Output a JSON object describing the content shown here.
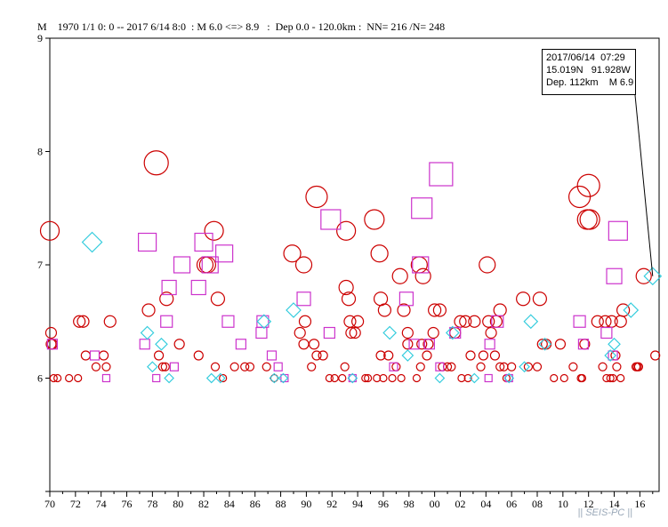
{
  "header": {
    "axis_letter": "M",
    "summary": "1970 1/1 0: 0 -- 2017 6/14 8:0  : M 6.0 <=> 8.9   :  Dep 0.0 - 120.0km :  NN= 216 /N= 248"
  },
  "info_box": {
    "line1": "2017/06/14  07:29",
    "line2": "15.019N   91.928W",
    "line3": "Dep. 112km    M 6.9"
  },
  "watermark": "|| SEIS-PC ||",
  "colors": {
    "circle": "#cc0000",
    "square": "#cc33cc",
    "diamond": "#33ccdd",
    "axis": "#000000"
  },
  "chart_data": {
    "type": "scatter",
    "title": "",
    "xlabel": "",
    "ylabel": "M",
    "xlim": [
      1970,
      2017.5
    ],
    "ylim": [
      5,
      9
    ],
    "x_tick_labels": [
      "70",
      "72",
      "74",
      "76",
      "78",
      "80",
      "82",
      "84",
      "86",
      "88",
      "90",
      "92",
      "94",
      "96",
      "98",
      "00",
      "02",
      "04",
      "06",
      "08",
      "10",
      "12",
      "14",
      "16"
    ],
    "y_tick_labels": [
      "6",
      "7",
      "8",
      "9"
    ],
    "series": [
      {
        "marker": "circle",
        "points": [
          [
            1970.0,
            7.3
          ],
          [
            1970.1,
            6.4
          ],
          [
            1970.1,
            6.3
          ],
          [
            1970.2,
            6.3
          ],
          [
            1970.3,
            6.0
          ],
          [
            1970.6,
            6.0
          ],
          [
            1971.5,
            6.0
          ],
          [
            1972.2,
            6.0
          ],
          [
            1972.3,
            6.5
          ],
          [
            1972.6,
            6.5
          ],
          [
            1972.8,
            6.2
          ],
          [
            1973.6,
            6.1
          ],
          [
            1974.2,
            6.2
          ],
          [
            1974.4,
            6.1
          ],
          [
            1974.7,
            6.5
          ],
          [
            1977.7,
            6.6
          ],
          [
            1978.3,
            7.9
          ],
          [
            1978.5,
            6.2
          ],
          [
            1978.8,
            6.1
          ],
          [
            1979.0,
            6.1
          ],
          [
            1979.1,
            6.7
          ],
          [
            1980.1,
            6.3
          ],
          [
            1981.6,
            6.2
          ],
          [
            1982.1,
            7.0
          ],
          [
            1982.3,
            7.0
          ],
          [
            1982.8,
            7.3
          ],
          [
            1982.9,
            6.1
          ],
          [
            1983.1,
            6.7
          ],
          [
            1983.5,
            6.0
          ],
          [
            1984.4,
            6.1
          ],
          [
            1985.2,
            6.1
          ],
          [
            1985.6,
            6.1
          ],
          [
            1986.9,
            6.1
          ],
          [
            1987.5,
            6.0
          ],
          [
            1988.9,
            7.1
          ],
          [
            1989.5,
            6.4
          ],
          [
            1989.8,
            7.0
          ],
          [
            1989.8,
            6.3
          ],
          [
            1989.9,
            6.5
          ],
          [
            1990.4,
            6.1
          ],
          [
            1990.6,
            6.3
          ],
          [
            1990.8,
            7.6
          ],
          [
            1990.8,
            6.2
          ],
          [
            1991.3,
            6.2
          ],
          [
            1991.8,
            6.0
          ],
          [
            1992.2,
            6.0
          ],
          [
            1992.8,
            6.0
          ],
          [
            1993.0,
            6.1
          ],
          [
            1993.1,
            6.8
          ],
          [
            1993.1,
            7.3
          ],
          [
            1993.3,
            6.7
          ],
          [
            1993.4,
            6.5
          ],
          [
            1993.5,
            6.4
          ],
          [
            1993.8,
            6.4
          ],
          [
            1994.0,
            6.5
          ],
          [
            1994.6,
            6.0
          ],
          [
            1994.8,
            6.0
          ],
          [
            1995.3,
            7.4
          ],
          [
            1995.5,
            6.0
          ],
          [
            1995.7,
            7.1
          ],
          [
            1995.8,
            6.2
          ],
          [
            1995.8,
            6.7
          ],
          [
            1996.0,
            6.0
          ],
          [
            1996.1,
            6.6
          ],
          [
            1996.4,
            6.2
          ],
          [
            1996.7,
            6.0
          ],
          [
            1997.0,
            6.1
          ],
          [
            1997.3,
            6.9
          ],
          [
            1997.4,
            6.0
          ],
          [
            1997.6,
            6.6
          ],
          [
            1997.9,
            6.3
          ],
          [
            1997.9,
            6.4
          ],
          [
            1998.6,
            6.0
          ],
          [
            1998.8,
            7.0
          ],
          [
            1998.9,
            6.1
          ],
          [
            1999.0,
            6.3
          ],
          [
            1999.1,
            6.9
          ],
          [
            1999.4,
            6.2
          ],
          [
            1999.5,
            6.3
          ],
          [
            1999.9,
            6.4
          ],
          [
            2000.0,
            6.6
          ],
          [
            2000.4,
            6.6
          ],
          [
            2000.6,
            6.1
          ],
          [
            2001.0,
            6.1
          ],
          [
            2001.3,
            6.1
          ],
          [
            2001.6,
            6.4
          ],
          [
            2002.0,
            6.5
          ],
          [
            2002.1,
            6.0
          ],
          [
            2002.4,
            6.5
          ],
          [
            2002.6,
            6.0
          ],
          [
            2002.8,
            6.2
          ],
          [
            2003.1,
            6.5
          ],
          [
            2003.6,
            6.1
          ],
          [
            2003.8,
            6.2
          ],
          [
            2004.1,
            7.0
          ],
          [
            2004.2,
            6.5
          ],
          [
            2004.4,
            6.4
          ],
          [
            2004.7,
            6.2
          ],
          [
            2004.8,
            6.5
          ],
          [
            2005.1,
            6.6
          ],
          [
            2005.1,
            6.1
          ],
          [
            2005.4,
            6.1
          ],
          [
            2005.6,
            6.0
          ],
          [
            2006.0,
            6.1
          ],
          [
            2006.9,
            6.7
          ],
          [
            2007.3,
            6.1
          ],
          [
            2008.0,
            6.1
          ],
          [
            2008.2,
            6.7
          ],
          [
            2008.4,
            6.3
          ],
          [
            2008.7,
            6.3
          ],
          [
            2009.3,
            6.0
          ],
          [
            2009.8,
            6.3
          ],
          [
            2010.1,
            6.0
          ],
          [
            2010.8,
            6.1
          ],
          [
            2011.3,
            7.6
          ],
          [
            2011.4,
            6.0
          ],
          [
            2011.5,
            6.0
          ],
          [
            2011.7,
            6.3
          ],
          [
            2011.9,
            7.4
          ],
          [
            2012.0,
            7.7
          ],
          [
            2012.1,
            7.4
          ],
          [
            2012.7,
            6.5
          ],
          [
            2013.1,
            6.1
          ],
          [
            2013.3,
            6.5
          ],
          [
            2013.4,
            6.0
          ],
          [
            2013.7,
            6.0
          ],
          [
            2013.8,
            6.5
          ],
          [
            2013.9,
            6.0
          ],
          [
            2014.1,
            6.2
          ],
          [
            2014.2,
            6.1
          ],
          [
            2014.5,
            6.0
          ],
          [
            2014.5,
            6.5
          ],
          [
            2014.7,
            6.6
          ],
          [
            2015.7,
            6.1
          ],
          [
            2015.8,
            6.1
          ],
          [
            2015.9,
            6.1
          ],
          [
            2016.3,
            6.9
          ],
          [
            2017.2,
            6.2
          ]
        ]
      },
      {
        "marker": "square",
        "points": [
          [
            1970.2,
            6.3
          ],
          [
            1973.5,
            6.2
          ],
          [
            1974.4,
            6.0
          ],
          [
            1977.4,
            6.3
          ],
          [
            1977.6,
            7.2
          ],
          [
            1978.3,
            6.0
          ],
          [
            1979.1,
            6.5
          ],
          [
            1979.3,
            6.8
          ],
          [
            1979.7,
            6.1
          ],
          [
            1980.3,
            7.0
          ],
          [
            1981.6,
            6.8
          ],
          [
            1982.0,
            7.2
          ],
          [
            1982.5,
            7.0
          ],
          [
            1983.6,
            7.1
          ],
          [
            1983.9,
            6.5
          ],
          [
            1984.9,
            6.3
          ],
          [
            1986.5,
            6.4
          ],
          [
            1986.6,
            6.5
          ],
          [
            1987.3,
            6.2
          ],
          [
            1987.8,
            6.1
          ],
          [
            1988.3,
            6.0
          ],
          [
            1989.8,
            6.7
          ],
          [
            1991.8,
            6.4
          ],
          [
            1991.9,
            7.4
          ],
          [
            1993.6,
            6.0
          ],
          [
            1996.8,
            6.1
          ],
          [
            1997.8,
            6.7
          ],
          [
            1998.4,
            6.3
          ],
          [
            1999.0,
            7.5
          ],
          [
            1998.9,
            7.0
          ],
          [
            1999.6,
            6.3
          ],
          [
            2000.4,
            6.1
          ],
          [
            2000.5,
            7.8
          ],
          [
            2001.6,
            6.4
          ],
          [
            2004.2,
            6.0
          ],
          [
            2004.3,
            6.3
          ],
          [
            2004.9,
            6.5
          ],
          [
            2005.8,
            6.0
          ],
          [
            2011.3,
            6.5
          ],
          [
            2011.6,
            6.3
          ],
          [
            2013.4,
            6.4
          ],
          [
            2013.9,
            6.2
          ],
          [
            2014.0,
            6.9
          ],
          [
            2014.3,
            7.3
          ]
        ]
      },
      {
        "marker": "diamond",
        "points": [
          [
            1973.3,
            7.2
          ],
          [
            1977.6,
            6.4
          ],
          [
            1978.0,
            6.1
          ],
          [
            1978.7,
            6.3
          ],
          [
            1979.3,
            6.0
          ],
          [
            1982.6,
            6.0
          ],
          [
            1983.3,
            6.0
          ],
          [
            1986.7,
            6.5
          ],
          [
            1987.5,
            6.0
          ],
          [
            1988.2,
            6.0
          ],
          [
            1989.0,
            6.6
          ],
          [
            1993.6,
            6.0
          ],
          [
            1996.5,
            6.4
          ],
          [
            1997.9,
            6.2
          ],
          [
            2000.4,
            6.0
          ],
          [
            2001.4,
            6.4
          ],
          [
            2003.1,
            6.0
          ],
          [
            2005.8,
            6.0
          ],
          [
            2007.0,
            6.1
          ],
          [
            2007.5,
            6.5
          ],
          [
            2008.6,
            6.3
          ],
          [
            2013.7,
            6.2
          ],
          [
            2014.0,
            6.3
          ],
          [
            2015.3,
            6.6
          ],
          [
            2017.0,
            6.9
          ]
        ]
      }
    ],
    "highlight": {
      "x": 2017.0,
      "y": 6.9
    }
  }
}
